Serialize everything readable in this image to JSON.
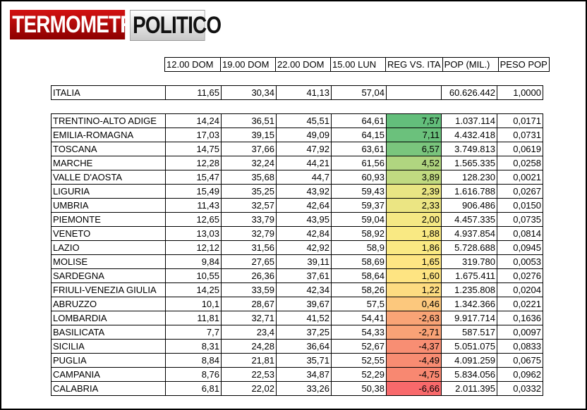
{
  "logo": {
    "part1": "TERMOMETRO",
    "part2": "POLITICO"
  },
  "headers": [
    "12.00 DOM",
    "19.00 DOM",
    "22.00 DOM",
    "15.00 LUN",
    "REG VS. ITA",
    "POP (MIL.)",
    "PESO POP"
  ],
  "italia": {
    "name": "ITALIA",
    "h12": "11,65",
    "h19": "30,34",
    "h22": "41,13",
    "h15": "57,04",
    "diff": "",
    "pop": "60.626.442",
    "peso": "1,0000"
  },
  "regions": [
    {
      "name": "TRENTINO-ALTO ADIGE",
      "h12": "14,24",
      "h19": "36,51",
      "h22": "45,51",
      "h15": "64,61",
      "diff": "7,57",
      "pop": "1.037.114",
      "peso": "0,0171",
      "color": "#63be7b"
    },
    {
      "name": "EMILIA-ROMAGNA",
      "h12": "17,03",
      "h19": "39,15",
      "h22": "49,09",
      "h15": "64,15",
      "diff": "7,11",
      "pop": "4.432.418",
      "peso": "0,0731",
      "color": "#6bc17c"
    },
    {
      "name": "TOSCANA",
      "h12": "14,75",
      "h19": "37,66",
      "h22": "47,92",
      "h15": "63,61",
      "diff": "6,57",
      "pop": "3.749.813",
      "peso": "0,0619",
      "color": "#7ac57d"
    },
    {
      "name": "MARCHE",
      "h12": "12,28",
      "h19": "32,24",
      "h22": "44,21",
      "h15": "61,56",
      "diff": "4,52",
      "pop": "1.565.335",
      "peso": "0,0258",
      "color": "#b0d580"
    },
    {
      "name": "VALLE D'AOSTA",
      "h12": "15,47",
      "h19": "35,68",
      "h22": "44,7",
      "h15": "60,93",
      "diff": "3,89",
      "pop": "128.230",
      "peso": "0,0021",
      "color": "#c1da81"
    },
    {
      "name": "LIGURIA",
      "h12": "15,49",
      "h19": "35,25",
      "h22": "43,92",
      "h15": "59,43",
      "diff": "2,39",
      "pop": "1.616.788",
      "peso": "0,0267",
      "color": "#e9e583"
    },
    {
      "name": "UMBRIA",
      "h12": "11,43",
      "h19": "32,57",
      "h22": "42,64",
      "h15": "59,37",
      "diff": "2,33",
      "pop": "906.486",
      "peso": "0,0150",
      "color": "#ebe583"
    },
    {
      "name": "PIEMONTE",
      "h12": "12,65",
      "h19": "33,79",
      "h22": "43,95",
      "h15": "59,04",
      "diff": "2,00",
      "pop": "4.457.335",
      "peso": "0,0735",
      "color": "#f5e884"
    },
    {
      "name": "VENETO",
      "h12": "13,03",
      "h19": "32,79",
      "h22": "42,84",
      "h15": "58,92",
      "diff": "1,88",
      "pop": "4.937.854",
      "peso": "0,0814",
      "color": "#f9e983"
    },
    {
      "name": "LAZIO",
      "h12": "12,12",
      "h19": "31,56",
      "h22": "42,92",
      "h15": "58,9",
      "diff": "1,86",
      "pop": "5.728.688",
      "peso": "0,0945",
      "color": "#fae983"
    },
    {
      "name": "MOLISE",
      "h12": "9,84",
      "h19": "27,65",
      "h22": "39,11",
      "h15": "58,69",
      "diff": "1,65",
      "pop": "319.780",
      "peso": "0,0053",
      "color": "#fee683"
    },
    {
      "name": "SARDEGNA",
      "h12": "10,55",
      "h19": "26,36",
      "h22": "37,61",
      "h15": "58,64",
      "diff": "1,60",
      "pop": "1.675.411",
      "peso": "0,0276",
      "color": "#fee482"
    },
    {
      "name": "FRIULI-VENEZIA GIULIA",
      "h12": "14,25",
      "h19": "33,59",
      "h22": "42,34",
      "h15": "58,26",
      "diff": "1,22",
      "pop": "1.235.808",
      "peso": "0,0204",
      "color": "#fddc81"
    },
    {
      "name": "ABRUZZO",
      "h12": "10,1",
      "h19": "28,67",
      "h22": "39,67",
      "h15": "57,5",
      "diff": "0,46",
      "pop": "1.342.366",
      "peso": "0,0221",
      "color": "#fcc87d"
    },
    {
      "name": "LOMBARDIA",
      "h12": "11,81",
      "h19": "32,71",
      "h22": "41,52",
      "h15": "54,41",
      "diff": "-2,63",
      "pop": "9.917.714",
      "peso": "0,1636",
      "color": "#f9a476"
    },
    {
      "name": "BASILICATA",
      "h12": "7,7",
      "h19": "23,4",
      "h22": "37,25",
      "h15": "54,33",
      "diff": "-2,71",
      "pop": "587.517",
      "peso": "0,0097",
      "color": "#f9a276"
    },
    {
      "name": "SICILIA",
      "h12": "8,31",
      "h19": "24,28",
      "h22": "36,64",
      "h15": "52,67",
      "diff": "-4,37",
      "pop": "5.051.075",
      "peso": "0,0833",
      "color": "#f88e73"
    },
    {
      "name": "PUGLIA",
      "h12": "8,84",
      "h19": "21,81",
      "h22": "35,71",
      "h15": "52,55",
      "diff": "-4,49",
      "pop": "4.091.259",
      "peso": "0,0675",
      "color": "#f88c72"
    },
    {
      "name": "CAMPANIA",
      "h12": "8,76",
      "h19": "22,53",
      "h22": "34,87",
      "h15": "52,29",
      "diff": "-4,75",
      "pop": "5.834.056",
      "peso": "0,0962",
      "color": "#f88871"
    },
    {
      "name": "CALABRIA",
      "h12": "6,81",
      "h19": "22,02",
      "h22": "33,26",
      "h15": "50,38",
      "diff": "-6,66",
      "pop": "2.011.395",
      "peso": "0,0332",
      "color": "#f8696b"
    }
  ]
}
